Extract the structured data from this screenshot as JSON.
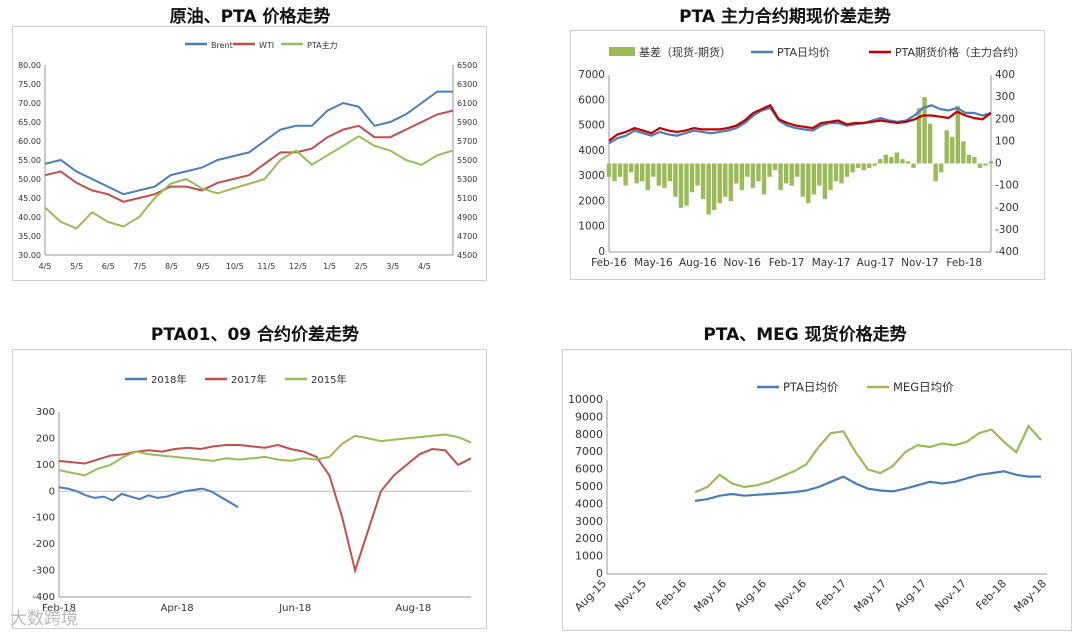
{
  "chart_data": [
    {
      "type": "line",
      "title": "原油、PTA 价格走势",
      "series": [
        {
          "name": "Brent",
          "color": "#4a7ebb",
          "axis": "left",
          "x": [
            "4/5",
            "4/19",
            "5/3",
            "5/17",
            "6/1",
            "6/15",
            "7/1",
            "7/15",
            "8/1",
            "8/15",
            "9/1",
            "9/15",
            "10/2",
            "10/16",
            "11/1",
            "11/15",
            "12/1",
            "12/15",
            "1/2",
            "1/16",
            "2/1",
            "2/15",
            "3/1",
            "3/15",
            "4/2",
            "4/16",
            "4/27"
          ],
          "values": [
            54,
            55,
            52,
            50,
            48,
            46,
            47,
            48,
            51,
            52,
            53,
            55,
            56,
            57,
            60,
            63,
            64,
            64,
            68,
            70,
            69,
            64,
            65,
            67,
            70,
            73,
            73
          ]
        },
        {
          "name": "WTI",
          "color": "#c0504d",
          "axis": "left",
          "x": [
            "4/5",
            "4/19",
            "5/3",
            "5/17",
            "6/1",
            "6/15",
            "7/1",
            "7/15",
            "8/1",
            "8/15",
            "9/1",
            "9/15",
            "10/2",
            "10/16",
            "11/1",
            "11/15",
            "12/1",
            "12/15",
            "1/2",
            "1/16",
            "2/1",
            "2/15",
            "3/1",
            "3/15",
            "4/2",
            "4/16",
            "4/27"
          ],
          "values": [
            51,
            52,
            49,
            47,
            46,
            44,
            45,
            46,
            48,
            48,
            47,
            49,
            50,
            51,
            54,
            57,
            57,
            58,
            61,
            63,
            64,
            61,
            61,
            63,
            65,
            67,
            68
          ]
        },
        {
          "name": "PTA主力",
          "color": "#9bbb59",
          "axis": "right",
          "x": [
            "4/5",
            "4/19",
            "5/3",
            "5/17",
            "6/1",
            "6/15",
            "7/1",
            "7/15",
            "8/1",
            "8/15",
            "9/1",
            "9/15",
            "10/2",
            "10/16",
            "11/1",
            "11/15",
            "12/1",
            "12/15",
            "1/2",
            "1/16",
            "2/1",
            "2/15",
            "3/1",
            "3/15",
            "4/2",
            "4/16",
            "4/27"
          ],
          "values": [
            5000,
            4850,
            4780,
            4950,
            4850,
            4800,
            4900,
            5100,
            5250,
            5300,
            5200,
            5150,
            5200,
            5250,
            5300,
            5500,
            5600,
            5450,
            5550,
            5650,
            5750,
            5650,
            5600,
            5500,
            5450,
            5550,
            5600
          ]
        }
      ],
      "x_ticks": [
        "4/5",
        "5/5",
        "6/5",
        "7/5",
        "8/5",
        "9/5",
        "10/5",
        "11/5",
        "12/5",
        "1/5",
        "2/5",
        "3/5",
        "4/5"
      ],
      "ylim": [
        30,
        80
      ],
      "yticks_left": [
        "30.00",
        "35.00",
        "40.00",
        "45.00",
        "50.00",
        "55.00",
        "60.00",
        "65.00",
        "70.00",
        "75.00",
        "80.00"
      ],
      "ylim_right": [
        4500,
        6500
      ],
      "yticks_right": [
        "4500",
        "4700",
        "4900",
        "5100",
        "5300",
        "5500",
        "5700",
        "5900",
        "6100",
        "6300",
        "6500"
      ],
      "legend": "top-center"
    },
    {
      "type": "line",
      "title": "PTA 主力合约期现价差走势",
      "series": [
        {
          "name": "基差（现货-期货）",
          "kind": "bar",
          "color": "#9bbb59",
          "axis": "right",
          "values": [
            -60,
            -80,
            -60,
            -100,
            -40,
            -90,
            -80,
            -120,
            -60,
            -100,
            -110,
            -80,
            -150,
            -200,
            -190,
            -130,
            -100,
            -160,
            -230,
            -210,
            -180,
            -150,
            -170,
            -90,
            -120,
            -60,
            -110,
            -80,
            -140,
            -60,
            -30,
            -120,
            -90,
            -100,
            -60,
            -150,
            -180,
            -140,
            -100,
            -160,
            -120,
            -80,
            -90,
            -60,
            -40,
            -20,
            -30,
            -20,
            -10,
            20,
            40,
            30,
            50,
            20,
            10,
            -20,
            250,
            300,
            180,
            -80,
            -40,
            150,
            120,
            260,
            100,
            40,
            30,
            -20,
            -10,
            10
          ]
        },
        {
          "name": "PTA日均价",
          "color": "#4a7ebb",
          "axis": "left",
          "values": [
            4300,
            4500,
            4600,
            4800,
            4700,
            4600,
            4750,
            4650,
            4600,
            4700,
            4800,
            4750,
            4700,
            4750,
            4800,
            4900,
            5100,
            5400,
            5600,
            5700,
            5200,
            5000,
            4900,
            4850,
            4800,
            5000,
            5100,
            5100,
            5000,
            5050,
            5100,
            5200,
            5300,
            5200,
            5150,
            5200,
            5400,
            5700,
            5800,
            5650,
            5600,
            5700,
            5500,
            5500,
            5400,
            5500
          ]
        },
        {
          "name": "PTA期货价格（主力合约）",
          "color": "#c00000",
          "axis": "left",
          "values": [
            4400,
            4650,
            4750,
            4900,
            4800,
            4700,
            4900,
            4800,
            4750,
            4800,
            4900,
            4850,
            4850,
            4850,
            4900,
            5000,
            5200,
            5500,
            5650,
            5800,
            5250,
            5100,
            5000,
            4950,
            4900,
            5100,
            5150,
            5200,
            5050,
            5100,
            5100,
            5150,
            5200,
            5150,
            5100,
            5150,
            5250,
            5400,
            5400,
            5350,
            5300,
            5550,
            5400,
            5300,
            5250,
            5500
          ]
        }
      ],
      "x_ticks": [
        "Feb-16",
        "May-16",
        "Aug-16",
        "Nov-16",
        "Feb-17",
        "May-17",
        "Aug-17",
        "Nov-17",
        "Feb-18"
      ],
      "ylim": [
        0,
        7000
      ],
      "yticks_left": [
        "0",
        "1000",
        "2000",
        "3000",
        "4000",
        "5000",
        "6000",
        "7000"
      ],
      "ylim_right": [
        -400,
        400
      ],
      "yticks_right": [
        "-400",
        "-300",
        "-200",
        "-100",
        "0",
        "100",
        "200",
        "300",
        "400"
      ],
      "legend": "top"
    },
    {
      "type": "line",
      "title": "PTA01、09 合约价差走势",
      "series": [
        {
          "name": "2018年",
          "color": "#4a7ebb",
          "values": [
            15,
            10,
            0,
            -15,
            -25,
            -20,
            -35,
            -10,
            -20,
            -30,
            -15,
            -25,
            -20,
            -10,
            0,
            5,
            10,
            0,
            -20,
            -40,
            -60
          ]
        },
        {
          "name": "2017年",
          "color": "#c0504d",
          "values": [
            115,
            110,
            105,
            120,
            135,
            140,
            150,
            155,
            150,
            160,
            165,
            160,
            170,
            175,
            175,
            170,
            165,
            175,
            160,
            150,
            130,
            60,
            -100,
            -300,
            -150,
            0,
            60,
            100,
            140,
            160,
            155,
            100,
            125
          ]
        },
        {
          "name": "2015年",
          "color": "#9bbb59",
          "values": [
            80,
            70,
            60,
            85,
            100,
            130,
            150,
            140,
            135,
            130,
            125,
            120,
            115,
            125,
            120,
            125,
            130,
            120,
            115,
            125,
            120,
            130,
            180,
            210,
            200,
            190,
            195,
            200,
            205,
            210,
            215,
            205,
            185
          ]
        }
      ],
      "x_ticks": [
        "Feb-18",
        "Apr-18",
        "Jun-18",
        "Aug-18"
      ],
      "ylim": [
        -400,
        300
      ],
      "yticks_left": [
        "-400",
        "-300",
        "-200",
        "-100",
        "0",
        "100",
        "200",
        "300"
      ],
      "legend": "top"
    },
    {
      "type": "line",
      "title": "PTA、MEG 现货价格走势",
      "series": [
        {
          "name": "PTA日均价",
          "color": "#4a7ebb",
          "values": [
            4200,
            4300,
            4500,
            4600,
            4500,
            4550,
            4600,
            4650,
            4700,
            4800,
            5000,
            5300,
            5600,
            5200,
            4900,
            4800,
            4750,
            4900,
            5100,
            5300,
            5200,
            5300,
            5500,
            5700,
            5800,
            5900,
            5700,
            5600,
            5600
          ]
        },
        {
          "name": "MEG日均价",
          "color": "#9bbb59",
          "values": [
            4700,
            5000,
            5700,
            5200,
            5000,
            5100,
            5300,
            5600,
            5900,
            6300,
            7300,
            8100,
            8200,
            7000,
            6000,
            5800,
            6200,
            7000,
            7400,
            7300,
            7500,
            7400,
            7600,
            8100,
            8300,
            7600,
            7000,
            8500,
            7700
          ]
        }
      ],
      "x_ticks": [
        "Aug-15",
        "Nov-15",
        "Feb-16",
        "May-16",
        "Aug-16",
        "Nov-16",
        "Feb-17",
        "May-17",
        "Aug-17",
        "Nov-17",
        "Feb-18",
        "May-18"
      ],
      "ylim": [
        0,
        10000
      ],
      "yticks_left": [
        "0",
        "1000",
        "2000",
        "3000",
        "4000",
        "5000",
        "6000",
        "7000",
        "8000",
        "9000",
        "10000"
      ],
      "legend": "top"
    }
  ],
  "watermark": "大数跨境"
}
